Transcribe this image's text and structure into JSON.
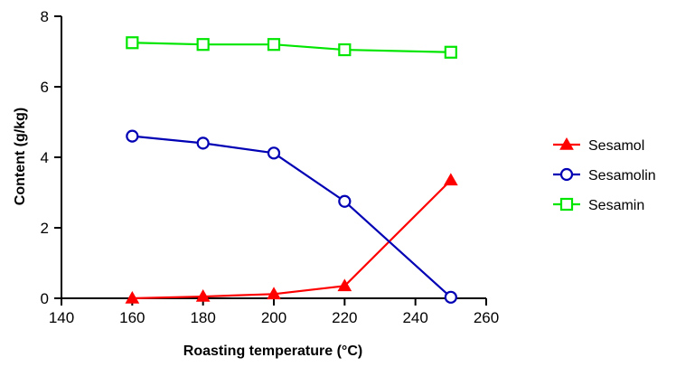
{
  "chart_data": {
    "type": "line",
    "title": "",
    "xlabel": "Roasting temperature (°C)",
    "ylabel": "Content (g/kg)",
    "xlim": [
      140,
      260
    ],
    "ylim": [
      0,
      8
    ],
    "xticks": [
      140,
      160,
      180,
      200,
      220,
      240,
      260
    ],
    "yticks": [
      0,
      2,
      4,
      6,
      8
    ],
    "grid": false,
    "legend_position": "right",
    "x": [
      160,
      180,
      200,
      220,
      250
    ],
    "series": [
      {
        "name": "Sesamol",
        "color": "#ff0000",
        "marker": "triangle-filled",
        "values": [
          0.0,
          0.05,
          0.12,
          0.35,
          3.35
        ]
      },
      {
        "name": "Sesamolin",
        "color": "#0000b4",
        "marker": "circle-open",
        "values": [
          4.6,
          4.4,
          4.12,
          2.75,
          0.03
        ]
      },
      {
        "name": "Sesamin",
        "color": "#00e600",
        "marker": "square-open",
        "values": [
          7.25,
          7.2,
          7.2,
          7.05,
          6.98
        ]
      }
    ]
  }
}
